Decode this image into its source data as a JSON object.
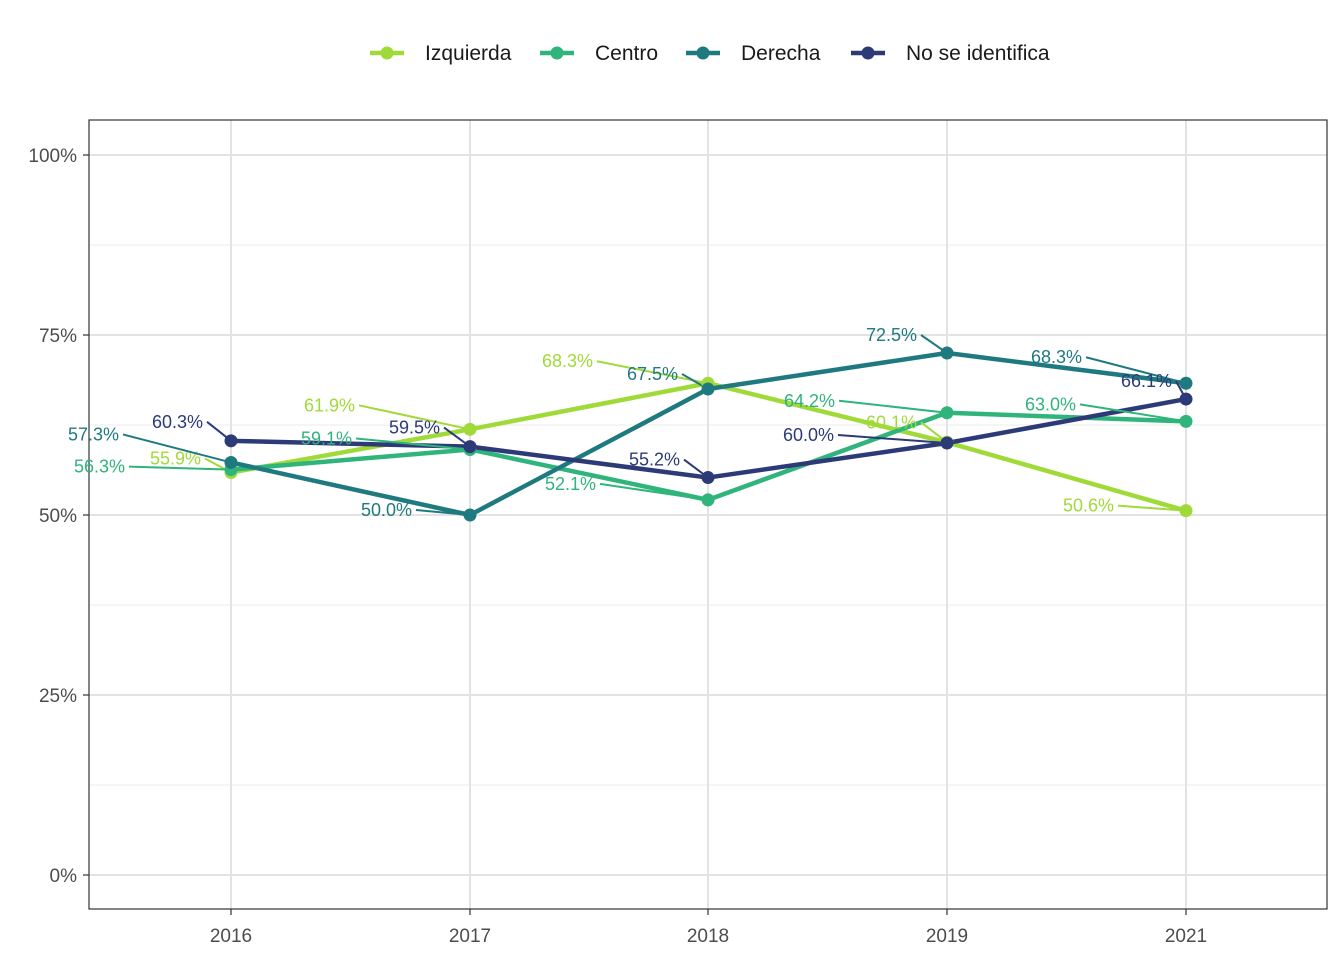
{
  "chart_data": {
    "type": "line",
    "categories": [
      "2016",
      "2017",
      "2018",
      "2019",
      "2021"
    ],
    "y_ticks": [
      "0%",
      "25%",
      "50%",
      "75%",
      "100%"
    ],
    "ylim": [
      0,
      100
    ],
    "grid": true,
    "legend_position": "top",
    "series": [
      {
        "name": "Izquierda",
        "color": "#a0da39",
        "values": [
          55.9,
          61.9,
          68.3,
          60.1,
          50.6
        ],
        "labels": [
          "55.9%",
          "61.9%",
          "68.3%",
          "60.1%",
          "50.6%"
        ]
      },
      {
        "name": "Centro",
        "color": "#2fb47c",
        "values": [
          56.3,
          59.1,
          52.1,
          64.2,
          63.0
        ],
        "labels": [
          "56.3%",
          "59.1%",
          "52.1%",
          "64.2%",
          "63.0%"
        ]
      },
      {
        "name": "Derecha",
        "color": "#1f7a80",
        "values": [
          57.3,
          50.0,
          67.5,
          72.5,
          68.3
        ],
        "labels": [
          "57.3%",
          "50.0%",
          "67.5%",
          "72.5%",
          "68.3%"
        ]
      },
      {
        "name": "No se identifica",
        "color": "#2d3a78",
        "values": [
          60.3,
          59.5,
          55.2,
          60.0,
          66.1
        ],
        "labels": [
          "60.3%",
          "59.5%",
          "55.2%",
          "60.0%",
          "66.1%"
        ]
      }
    ]
  }
}
